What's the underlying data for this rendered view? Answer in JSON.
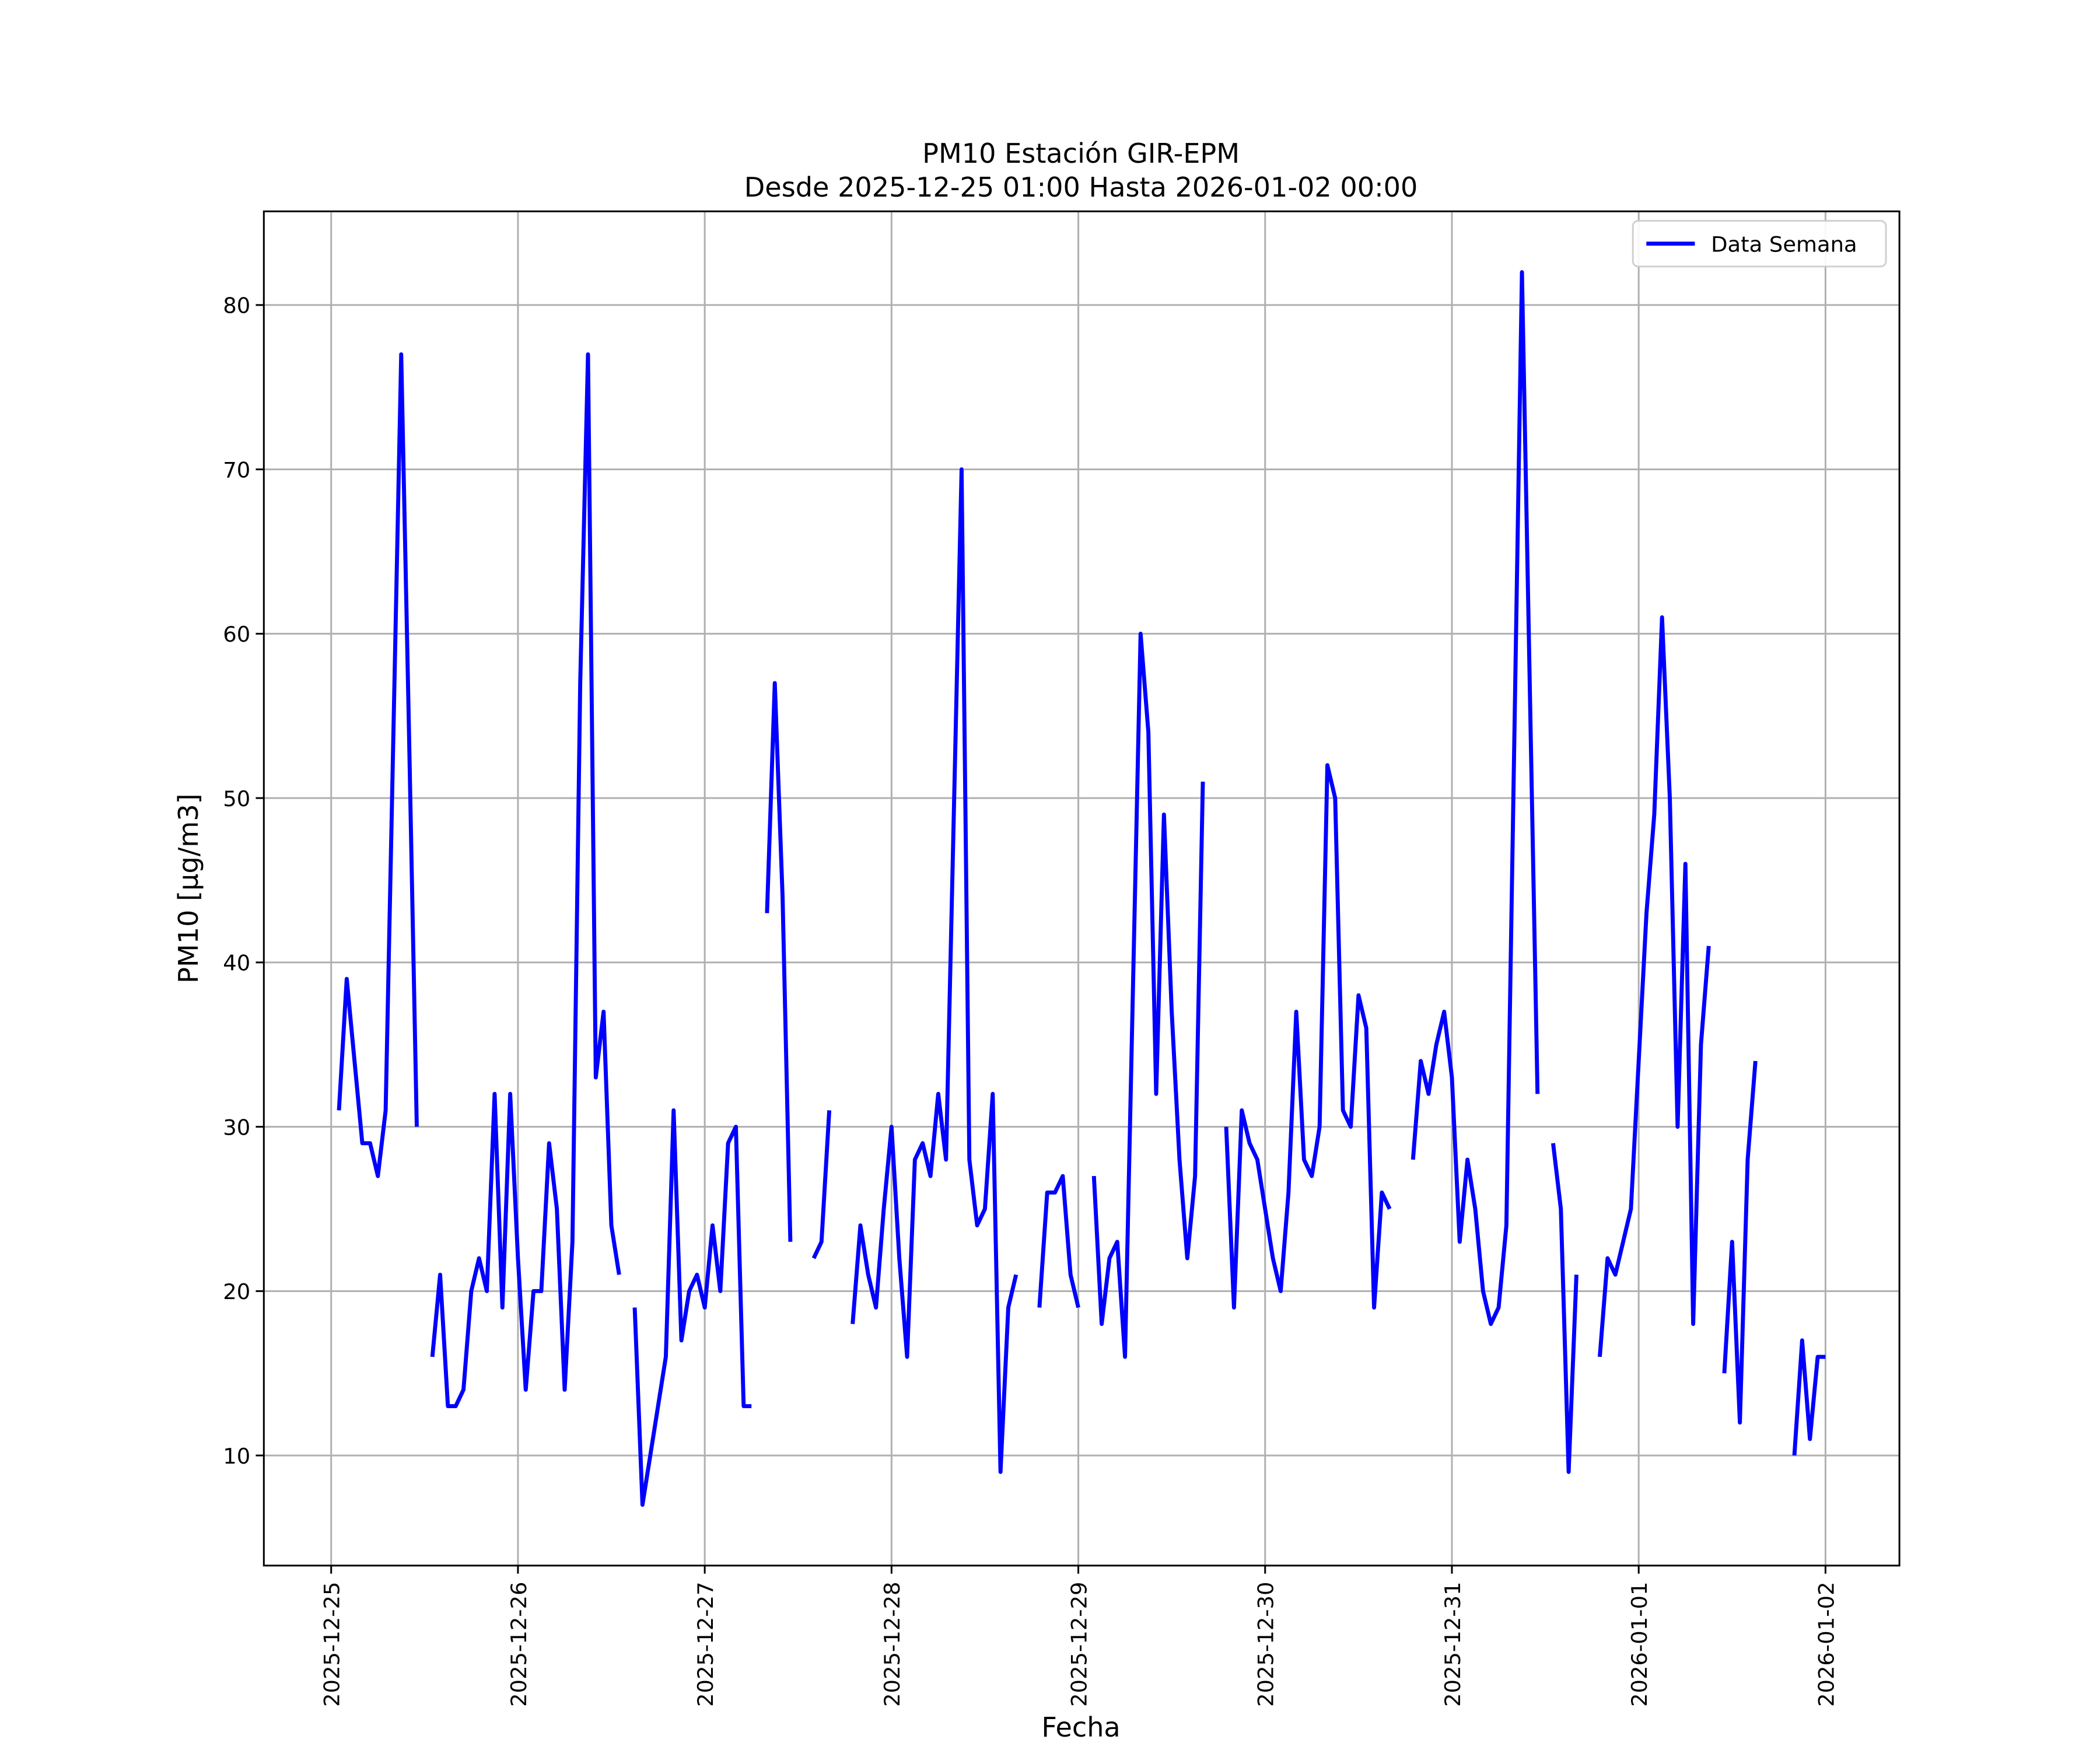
{
  "chart_data": {
    "type": "line",
    "title": "PM10 Estación GIR-EPM",
    "subtitle": "Desde 2025-12-25 01:00 Hasta 2026-01-02 00:00",
    "x_label": "Fecha",
    "y_label": "PM10 [μg/m3]",
    "grid": true,
    "legend": "upper right",
    "xlim": [
      "2025-12-24 15:21",
      "2026-01-02 09:30"
    ],
    "ylim": [
      3.3,
      85.7
    ],
    "xticks": [
      "2025-12-25",
      "2025-12-26",
      "2025-12-27",
      "2025-12-28",
      "2025-12-29",
      "2025-12-30",
      "2025-12-31",
      "2026-01-01",
      "2026-01-02"
    ],
    "yticks": [
      10,
      20,
      30,
      40,
      50,
      60,
      70,
      80
    ],
    "x": [
      "2025-12-25 01:00",
      "2025-12-25 02:00",
      "2025-12-25 03:00",
      "2025-12-25 04:00",
      "2025-12-25 05:00",
      "2025-12-25 06:00",
      "2025-12-25 07:00",
      "2025-12-25 08:00",
      "2025-12-25 09:00",
      "2025-12-25 10:00",
      "2025-12-25 11:00",
      "2025-12-25 12:00",
      "2025-12-25 13:00",
      "2025-12-25 14:00",
      "2025-12-25 15:00",
      "2025-12-25 16:00",
      "2025-12-25 17:00",
      "2025-12-25 18:00",
      "2025-12-25 19:00",
      "2025-12-25 20:00",
      "2025-12-25 21:00",
      "2025-12-25 22:00",
      "2025-12-25 23:00",
      "2025-12-26 00:00",
      "2025-12-26 01:00",
      "2025-12-26 02:00",
      "2025-12-26 03:00",
      "2025-12-26 04:00",
      "2025-12-26 05:00",
      "2025-12-26 06:00",
      "2025-12-26 07:00",
      "2025-12-26 08:00",
      "2025-12-26 09:00",
      "2025-12-26 10:00",
      "2025-12-26 11:00",
      "2025-12-26 12:00",
      "2025-12-26 13:00",
      "2025-12-26 14:00",
      "2025-12-26 15:00",
      "2025-12-26 16:00",
      "2025-12-26 17:00",
      "2025-12-26 18:00",
      "2025-12-26 19:00",
      "2025-12-26 20:00",
      "2025-12-26 21:00",
      "2025-12-26 22:00",
      "2025-12-26 23:00",
      "2025-12-27 00:00",
      "2025-12-27 01:00",
      "2025-12-27 02:00",
      "2025-12-27 03:00",
      "2025-12-27 04:00",
      "2025-12-27 05:00",
      "2025-12-27 06:00",
      "2025-12-27 07:00",
      "2025-12-27 08:00",
      "2025-12-27 09:00",
      "2025-12-27 10:00",
      "2025-12-27 11:00",
      "2025-12-27 12:00",
      "2025-12-27 13:00",
      "2025-12-27 14:00",
      "2025-12-27 15:00",
      "2025-12-27 16:00",
      "2025-12-27 17:00",
      "2025-12-27 18:00",
      "2025-12-27 19:00",
      "2025-12-27 20:00",
      "2025-12-27 21:00",
      "2025-12-27 22:00",
      "2025-12-27 23:00",
      "2025-12-28 00:00",
      "2025-12-28 01:00",
      "2025-12-28 02:00",
      "2025-12-28 03:00",
      "2025-12-28 04:00",
      "2025-12-28 05:00",
      "2025-12-28 06:00",
      "2025-12-28 07:00",
      "2025-12-28 08:00",
      "2025-12-28 09:00",
      "2025-12-28 10:00",
      "2025-12-28 11:00",
      "2025-12-28 12:00",
      "2025-12-28 13:00",
      "2025-12-28 14:00",
      "2025-12-28 15:00",
      "2025-12-28 16:00",
      "2025-12-28 17:00",
      "2025-12-28 18:00",
      "2025-12-28 19:00",
      "2025-12-28 20:00",
      "2025-12-28 21:00",
      "2025-12-28 22:00",
      "2025-12-28 23:00",
      "2025-12-29 00:00",
      "2025-12-29 01:00",
      "2025-12-29 02:00",
      "2025-12-29 03:00",
      "2025-12-29 04:00",
      "2025-12-29 05:00",
      "2025-12-29 06:00",
      "2025-12-29 07:00",
      "2025-12-29 08:00",
      "2025-12-29 09:00",
      "2025-12-29 10:00",
      "2025-12-29 11:00",
      "2025-12-29 12:00",
      "2025-12-29 13:00",
      "2025-12-29 14:00",
      "2025-12-29 15:00",
      "2025-12-29 16:00",
      "2025-12-29 17:00",
      "2025-12-29 18:00",
      "2025-12-29 19:00",
      "2025-12-29 20:00",
      "2025-12-29 21:00",
      "2025-12-29 22:00",
      "2025-12-29 23:00",
      "2025-12-30 00:00",
      "2025-12-30 01:00",
      "2025-12-30 02:00",
      "2025-12-30 03:00",
      "2025-12-30 04:00",
      "2025-12-30 05:00",
      "2025-12-30 06:00",
      "2025-12-30 07:00",
      "2025-12-30 08:00",
      "2025-12-30 09:00",
      "2025-12-30 10:00",
      "2025-12-30 11:00",
      "2025-12-30 12:00",
      "2025-12-30 13:00",
      "2025-12-30 14:00",
      "2025-12-30 15:00",
      "2025-12-30 16:00",
      "2025-12-30 17:00",
      "2025-12-30 18:00",
      "2025-12-30 19:00",
      "2025-12-30 20:00",
      "2025-12-30 21:00",
      "2025-12-30 22:00",
      "2025-12-30 23:00",
      "2025-12-31 00:00",
      "2025-12-31 01:00",
      "2025-12-31 02:00",
      "2025-12-31 03:00",
      "2025-12-31 04:00",
      "2025-12-31 05:00",
      "2025-12-31 06:00",
      "2025-12-31 07:00",
      "2025-12-31 08:00",
      "2025-12-31 09:00",
      "2025-12-31 10:00",
      "2025-12-31 11:00",
      "2025-12-31 12:00",
      "2025-12-31 13:00",
      "2025-12-31 14:00",
      "2025-12-31 15:00",
      "2025-12-31 16:00",
      "2025-12-31 17:00",
      "2025-12-31 18:00",
      "2025-12-31 19:00",
      "2025-12-31 20:00",
      "2025-12-31 21:00",
      "2025-12-31 22:00",
      "2025-12-31 23:00",
      "2026-01-01 00:00",
      "2026-01-01 01:00",
      "2026-01-01 02:00",
      "2026-01-01 03:00",
      "2026-01-01 04:00",
      "2026-01-01 05:00",
      "2026-01-01 06:00",
      "2026-01-01 07:00",
      "2026-01-01 08:00",
      "2026-01-01 09:00",
      "2026-01-01 10:00",
      "2026-01-01 11:00",
      "2026-01-01 12:00",
      "2026-01-01 13:00",
      "2026-01-01 14:00",
      "2026-01-01 15:00",
      "2026-01-01 16:00",
      "2026-01-01 17:00",
      "2026-01-01 18:00",
      "2026-01-01 19:00",
      "2026-01-01 20:00",
      "2026-01-01 21:00",
      "2026-01-01 22:00",
      "2026-01-01 23:00",
      "2026-01-02 00:00"
    ],
    "series": [
      {
        "name": "Data Semana",
        "color": "#0000ff",
        "values": [
          31,
          39,
          34,
          29,
          29,
          27,
          31,
          54,
          77,
          54,
          30,
          null,
          16,
          21,
          13,
          13,
          14,
          20,
          22,
          20,
          32,
          19,
          32,
          22,
          14,
          20,
          20,
          29,
          25,
          14,
          23,
          57,
          77,
          33,
          37,
          24,
          21,
          null,
          19,
          7,
          10,
          13,
          16,
          31,
          17,
          20,
          21,
          19,
          24,
          20,
          29,
          30,
          13,
          13,
          null,
          43,
          57,
          44,
          23,
          null,
          null,
          22,
          23,
          31,
          null,
          null,
          18,
          24,
          21,
          19,
          25,
          30,
          22,
          16,
          28,
          29,
          27,
          32,
          28,
          49,
          70,
          28,
          24,
          25,
          32,
          9,
          19,
          21,
          null,
          null,
          19,
          26,
          26,
          27,
          21,
          19,
          null,
          27,
          18,
          22,
          23,
          16,
          38,
          60,
          54,
          32,
          49,
          37,
          28,
          22,
          27,
          51,
          null,
          null,
          30,
          19,
          31,
          29,
          28,
          25,
          22,
          20,
          26,
          37,
          28,
          27,
          30,
          52,
          50,
          31,
          30,
          38,
          36,
          19,
          26,
          25,
          null,
          null,
          28,
          34,
          32,
          35,
          37,
          33,
          23,
          28,
          25,
          20,
          18,
          19,
          24,
          53,
          82,
          57,
          32,
          null,
          29,
          25,
          9,
          21,
          null,
          null,
          16,
          22,
          21,
          23,
          25,
          34,
          43,
          49,
          61,
          50,
          30,
          46,
          18,
          35,
          41,
          null,
          15,
          23,
          12,
          28,
          34,
          null,
          null,
          null,
          null,
          10,
          17,
          11,
          16,
          16
        ]
      }
    ]
  }
}
